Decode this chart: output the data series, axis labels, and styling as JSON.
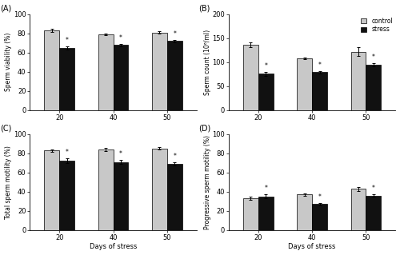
{
  "days": [
    20,
    40,
    50
  ],
  "A": {
    "title": "(A)",
    "ylabel": "Sperm viability (%)",
    "ylim": [
      0,
      100
    ],
    "yticks": [
      0,
      20,
      40,
      60,
      80,
      100
    ],
    "control": [
      83,
      79,
      81
    ],
    "stress": [
      65,
      68,
      72
    ],
    "control_err": [
      1.5,
      1.0,
      1.5
    ],
    "stress_err": [
      1.5,
      1.2,
      1.5
    ]
  },
  "B": {
    "title": "(B)",
    "ylabel": "Sperm count (10⁶/ml)",
    "ylim": [
      0,
      200
    ],
    "yticks": [
      0,
      50,
      100,
      150,
      200
    ],
    "control": [
      137,
      108,
      122
    ],
    "stress": [
      76,
      79,
      95
    ],
    "control_err": [
      5,
      2,
      9
    ],
    "stress_err": [
      4,
      2,
      3
    ]
  },
  "C": {
    "title": "(C)",
    "ylabel": "Total sperm motility (%)",
    "ylim": [
      0,
      100
    ],
    "yticks": [
      0,
      20,
      40,
      60,
      80,
      100
    ],
    "control": [
      83,
      84,
      85
    ],
    "stress": [
      72,
      71,
      69
    ],
    "control_err": [
      1.2,
      1.5,
      1.2
    ],
    "stress_err": [
      2.5,
      2.0,
      1.8
    ]
  },
  "D": {
    "title": "(D)",
    "ylabel": "Progressive sperm motility (%)",
    "ylim": [
      0,
      100
    ],
    "yticks": [
      0,
      20,
      40,
      60,
      80,
      100
    ],
    "control": [
      33,
      37,
      43
    ],
    "stress": [
      35,
      27,
      36
    ],
    "control_err": [
      1.5,
      1.5,
      2.0
    ],
    "stress_err": [
      2.0,
      1.5,
      1.5
    ]
  },
  "control_color": "#c8c8c8",
  "stress_color": "#111111",
  "bar_width": 0.28,
  "xlabel": "Days of stress",
  "legend_labels": [
    "control",
    "stress"
  ],
  "star_label": "*"
}
